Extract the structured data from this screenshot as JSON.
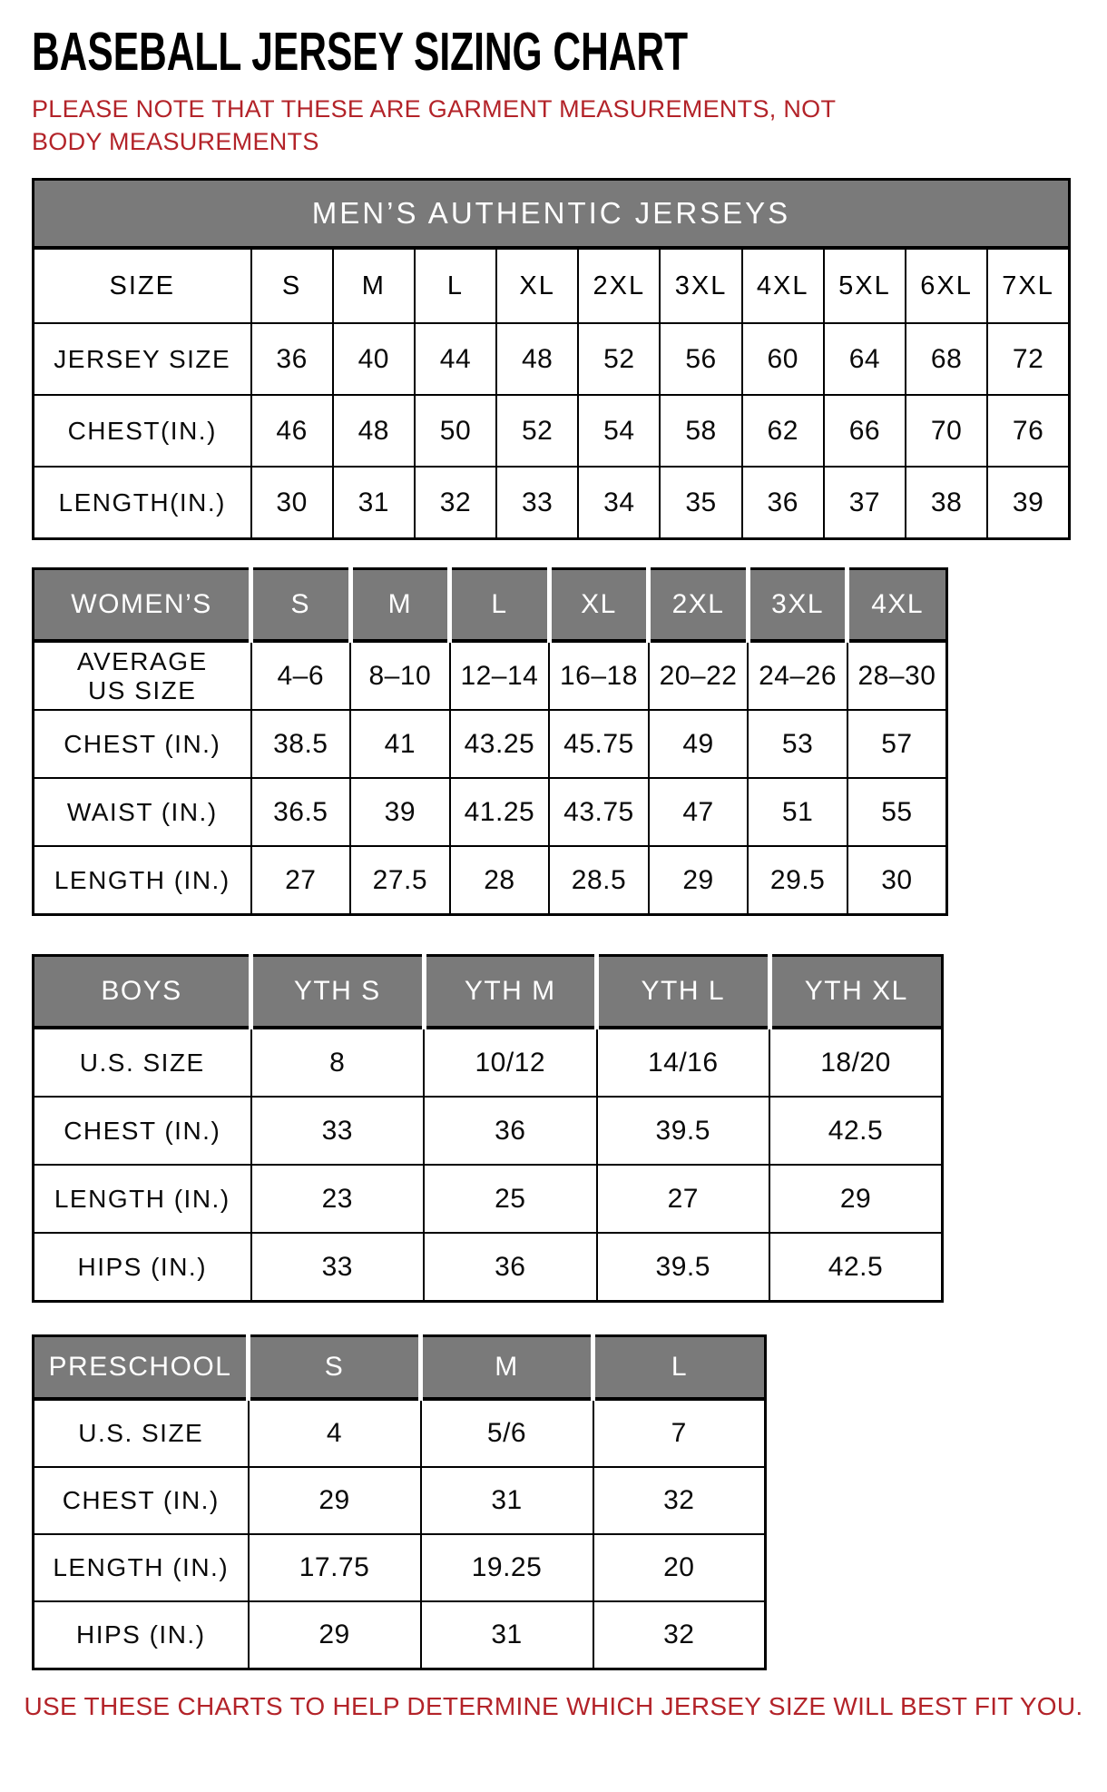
{
  "page": {
    "title": "BASEBALL JERSEY SIZING CHART",
    "note": "PLEASE NOTE THAT THESE ARE GARMENT MEASUREMENTS, NOT BODY MEASUREMENTS",
    "footer": "USE THESE CHARTS TO HELP DETERMINE WHICH JERSEY SIZE WILL BEST FIT YOU."
  },
  "colors": {
    "accent_red": "#b32329",
    "header_gray": "#7a7a7a",
    "border_black": "#000000"
  },
  "tables": {
    "mens": {
      "banner": "MEN’S AUTHENTIC JERSEYS",
      "columns": [
        "SIZE",
        "S",
        "M",
        "L",
        "XL",
        "2XL",
        "3XL",
        "4XL",
        "5XL",
        "6XL",
        "7XL"
      ],
      "rows": [
        [
          "JERSEY SIZE",
          "36",
          "40",
          "44",
          "48",
          "52",
          "56",
          "60",
          "64",
          "68",
          "72"
        ],
        [
          "CHEST(IN.)",
          "46",
          "48",
          "50",
          "52",
          "54",
          "58",
          "62",
          "66",
          "70",
          "76"
        ],
        [
          "LENGTH(IN.)",
          "30",
          "31",
          "32",
          "33",
          "34",
          "35",
          "36",
          "37",
          "38",
          "39"
        ]
      ]
    },
    "womens": {
      "columns": [
        "WOMEN’S",
        "S",
        "M",
        "L",
        "XL",
        "2XL",
        "3XL",
        "4XL"
      ],
      "rows": [
        [
          "AVERAGE\nUS SIZE",
          "4–6",
          "8–10",
          "12–14",
          "16–18",
          "20–22",
          "24–26",
          "28–30"
        ],
        [
          "CHEST (IN.)",
          "38.5",
          "41",
          "43.25",
          "45.75",
          "49",
          "53",
          "57"
        ],
        [
          "WAIST (IN.)",
          "36.5",
          "39",
          "41.25",
          "43.75",
          "47",
          "51",
          "55"
        ],
        [
          "LENGTH (IN.)",
          "27",
          "27.5",
          "28",
          "28.5",
          "29",
          "29.5",
          "30"
        ]
      ]
    },
    "boys": {
      "columns": [
        "BOYS",
        "YTH S",
        "YTH M",
        "YTH L",
        "YTH XL"
      ],
      "rows": [
        [
          "U.S. SIZE",
          "8",
          "10/12",
          "14/16",
          "18/20"
        ],
        [
          "CHEST (IN.)",
          "33",
          "36",
          "39.5",
          "42.5"
        ],
        [
          "LENGTH (IN.)",
          "23",
          "25",
          "27",
          "29"
        ],
        [
          "HIPS (IN.)",
          "33",
          "36",
          "39.5",
          "42.5"
        ]
      ]
    },
    "preschool": {
      "columns": [
        "PRESCHOOL",
        "S",
        "M",
        "L"
      ],
      "rows": [
        [
          "U.S. SIZE",
          "4",
          "5/6",
          "7"
        ],
        [
          "CHEST (IN.)",
          "29",
          "31",
          "32"
        ],
        [
          "LENGTH (IN.)",
          "17.75",
          "19.25",
          "20"
        ],
        [
          "HIPS (IN.)",
          "29",
          "31",
          "32"
        ]
      ]
    }
  }
}
